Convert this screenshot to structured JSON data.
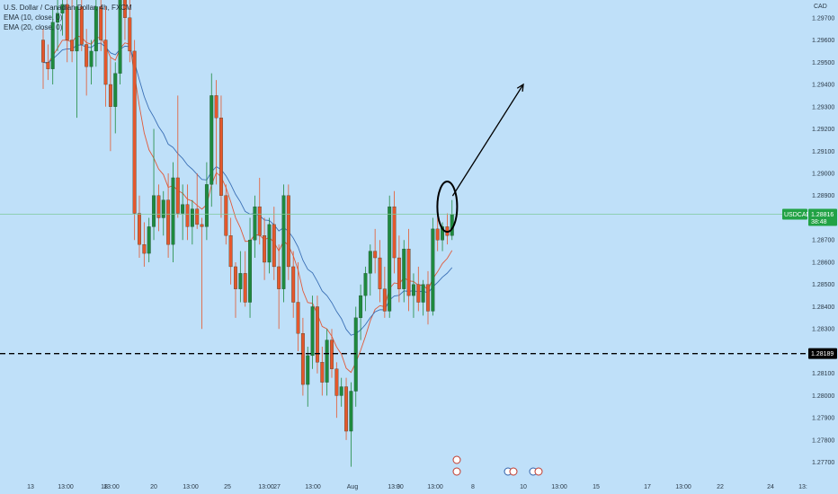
{
  "legend": {
    "title": "U.S. Dollar / Canadian Dollar, 4h, FXCM",
    "ema1": "EMA (10, close, 0)",
    "ema2": "EMA (20, close, 0)"
  },
  "chart_data": {
    "type": "candlestick",
    "symbol": "USDCAD",
    "currency_label": "CAD",
    "y_ticks": [
      "1.29700",
      "1.29600",
      "1.29500",
      "1.29400",
      "1.29300",
      "1.29200",
      "1.29100",
      "1.29000",
      "1.28900",
      "1.28700",
      "1.28600",
      "1.28500",
      "1.28400",
      "1.28300",
      "1.28100",
      "1.28000",
      "1.27900",
      "1.27800",
      "1.27700"
    ],
    "x_ticks": [
      "13",
      "13:00",
      "18",
      "13:00",
      "20",
      "13:00",
      "25",
      "13:00",
      "27",
      "13:00",
      "Aug",
      "13:00",
      "3",
      "13:00",
      "8",
      "10",
      "13:00",
      "15",
      "17",
      "13:00",
      "22",
      "24",
      "13:"
    ],
    "ylim": [
      1.2763,
      1.2978
    ],
    "last_price": {
      "label": "USDCAD",
      "value": "1.28816",
      "countdown": "38:48"
    },
    "support_level": {
      "value": "1.28189"
    },
    "colors": {
      "up": "#1e8a3e",
      "down": "#e5572c",
      "ema_fast": "#e05a3a",
      "ema_slow": "#3a6fb5",
      "background": "#bfe0f9"
    },
    "annotations": [
      "ellipse around latest candles",
      "arrow pointing up-right"
    ],
    "candles": [
      {
        "o": 1.296,
        "h": 1.2965,
        "l": 1.2938,
        "c": 1.295
      },
      {
        "o": 1.295,
        "h": 1.2958,
        "l": 1.2942,
        "c": 1.2947
      },
      {
        "o": 1.2947,
        "h": 1.2975,
        "l": 1.294,
        "c": 1.2968
      },
      {
        "o": 1.2968,
        "h": 1.298,
        "l": 1.2955,
        "c": 1.2972
      },
      {
        "o": 1.2972,
        "h": 1.2982,
        "l": 1.2962,
        "c": 1.2976
      },
      {
        "o": 1.2976,
        "h": 1.2985,
        "l": 1.295,
        "c": 1.296
      },
      {
        "o": 1.296,
        "h": 1.2978,
        "l": 1.295,
        "c": 1.2955
      },
      {
        "o": 1.2955,
        "h": 1.298,
        "l": 1.2925,
        "c": 1.2975
      },
      {
        "o": 1.2975,
        "h": 1.299,
        "l": 1.2955,
        "c": 1.2958
      },
      {
        "o": 1.2958,
        "h": 1.2965,
        "l": 1.2935,
        "c": 1.2948
      },
      {
        "o": 1.2948,
        "h": 1.296,
        "l": 1.294,
        "c": 1.2955
      },
      {
        "o": 1.2955,
        "h": 1.298,
        "l": 1.2948,
        "c": 1.2975
      },
      {
        "o": 1.2975,
        "h": 1.2985,
        "l": 1.2955,
        "c": 1.296
      },
      {
        "o": 1.296,
        "h": 1.2975,
        "l": 1.293,
        "c": 1.294
      },
      {
        "o": 1.294,
        "h": 1.2952,
        "l": 1.291,
        "c": 1.293
      },
      {
        "o": 1.293,
        "h": 1.295,
        "l": 1.2918,
        "c": 1.2945
      },
      {
        "o": 1.2945,
        "h": 1.2985,
        "l": 1.294,
        "c": 1.298
      },
      {
        "o": 1.298,
        "h": 1.299,
        "l": 1.296,
        "c": 1.297
      },
      {
        "o": 1.297,
        "h": 1.298,
        "l": 1.295,
        "c": 1.2955
      },
      {
        "o": 1.2955,
        "h": 1.296,
        "l": 1.287,
        "c": 1.2882
      },
      {
        "o": 1.2882,
        "h": 1.289,
        "l": 1.2862,
        "c": 1.2868
      },
      {
        "o": 1.2868,
        "h": 1.2878,
        "l": 1.2858,
        "c": 1.2864
      },
      {
        "o": 1.2864,
        "h": 1.288,
        "l": 1.286,
        "c": 1.2876
      },
      {
        "o": 1.2876,
        "h": 1.292,
        "l": 1.287,
        "c": 1.289
      },
      {
        "o": 1.289,
        "h": 1.2895,
        "l": 1.2874,
        "c": 1.288
      },
      {
        "o": 1.288,
        "h": 1.2892,
        "l": 1.2872,
        "c": 1.2888
      },
      {
        "o": 1.2888,
        "h": 1.29,
        "l": 1.2862,
        "c": 1.2868
      },
      {
        "o": 1.2868,
        "h": 1.2905,
        "l": 1.286,
        "c": 1.2898
      },
      {
        "o": 1.2898,
        "h": 1.2935,
        "l": 1.288,
        "c": 1.2882
      },
      {
        "o": 1.2882,
        "h": 1.2895,
        "l": 1.287,
        "c": 1.2886
      },
      {
        "o": 1.2886,
        "h": 1.2895,
        "l": 1.287,
        "c": 1.2876
      },
      {
        "o": 1.2876,
        "h": 1.2888,
        "l": 1.2868,
        "c": 1.2884
      },
      {
        "o": 1.2884,
        "h": 1.29,
        "l": 1.2875,
        "c": 1.2877
      },
      {
        "o": 1.2877,
        "h": 1.288,
        "l": 1.283,
        "c": 1.2876
      },
      {
        "o": 1.2876,
        "h": 1.2905,
        "l": 1.287,
        "c": 1.2895
      },
      {
        "o": 1.2895,
        "h": 1.2945,
        "l": 1.2885,
        "c": 1.2935
      },
      {
        "o": 1.2935,
        "h": 1.2942,
        "l": 1.2895,
        "c": 1.2925
      },
      {
        "o": 1.2925,
        "h": 1.2935,
        "l": 1.288,
        "c": 1.289
      },
      {
        "o": 1.289,
        "h": 1.2895,
        "l": 1.2868,
        "c": 1.2872
      },
      {
        "o": 1.2872,
        "h": 1.288,
        "l": 1.285,
        "c": 1.2858
      },
      {
        "o": 1.2858,
        "h": 1.286,
        "l": 1.2835,
        "c": 1.2848
      },
      {
        "o": 1.2848,
        "h": 1.2865,
        "l": 1.2842,
        "c": 1.2855
      },
      {
        "o": 1.2855,
        "h": 1.2865,
        "l": 1.284,
        "c": 1.2842
      },
      {
        "o": 1.2842,
        "h": 1.288,
        "l": 1.2835,
        "c": 1.287
      },
      {
        "o": 1.287,
        "h": 1.289,
        "l": 1.2862,
        "c": 1.2885
      },
      {
        "o": 1.2885,
        "h": 1.2898,
        "l": 1.2868,
        "c": 1.2872
      },
      {
        "o": 1.2872,
        "h": 1.288,
        "l": 1.2852,
        "c": 1.286
      },
      {
        "o": 1.286,
        "h": 1.288,
        "l": 1.2855,
        "c": 1.2877
      },
      {
        "o": 1.2877,
        "h": 1.2885,
        "l": 1.2852,
        "c": 1.2858
      },
      {
        "o": 1.2858,
        "h": 1.2868,
        "l": 1.283,
        "c": 1.2848
      },
      {
        "o": 1.2848,
        "h": 1.2895,
        "l": 1.2842,
        "c": 1.289
      },
      {
        "o": 1.289,
        "h": 1.2895,
        "l": 1.2852,
        "c": 1.2858
      },
      {
        "o": 1.2858,
        "h": 1.2865,
        "l": 1.2835,
        "c": 1.2842
      },
      {
        "o": 1.2842,
        "h": 1.286,
        "l": 1.282,
        "c": 1.2828
      },
      {
        "o": 1.2828,
        "h": 1.2835,
        "l": 1.28,
        "c": 1.2805
      },
      {
        "o": 1.2805,
        "h": 1.2822,
        "l": 1.2795,
        "c": 1.2818
      },
      {
        "o": 1.2818,
        "h": 1.2845,
        "l": 1.2812,
        "c": 1.284
      },
      {
        "o": 1.284,
        "h": 1.2845,
        "l": 1.281,
        "c": 1.2815
      },
      {
        "o": 1.2815,
        "h": 1.2822,
        "l": 1.28,
        "c": 1.2806
      },
      {
        "o": 1.2806,
        "h": 1.283,
        "l": 1.28,
        "c": 1.2825
      },
      {
        "o": 1.2825,
        "h": 1.283,
        "l": 1.2808,
        "c": 1.2812
      },
      {
        "o": 1.2812,
        "h": 1.2815,
        "l": 1.279,
        "c": 1.28
      },
      {
        "o": 1.28,
        "h": 1.2808,
        "l": 1.2795,
        "c": 1.2804
      },
      {
        "o": 1.2804,
        "h": 1.2808,
        "l": 1.278,
        "c": 1.2784
      },
      {
        "o": 1.2784,
        "h": 1.2806,
        "l": 1.2768,
        "c": 1.2802
      },
      {
        "o": 1.2802,
        "h": 1.284,
        "l": 1.2795,
        "c": 1.2835
      },
      {
        "o": 1.2835,
        "h": 1.285,
        "l": 1.2825,
        "c": 1.2845
      },
      {
        "o": 1.2845,
        "h": 1.2858,
        "l": 1.2838,
        "c": 1.2855
      },
      {
        "o": 1.2855,
        "h": 1.2868,
        "l": 1.2845,
        "c": 1.2865
      },
      {
        "o": 1.2865,
        "h": 1.2875,
        "l": 1.2855,
        "c": 1.2862
      },
      {
        "o": 1.2862,
        "h": 1.287,
        "l": 1.2842,
        "c": 1.2848
      },
      {
        "o": 1.2848,
        "h": 1.2858,
        "l": 1.2835,
        "c": 1.2838
      },
      {
        "o": 1.2838,
        "h": 1.289,
        "l": 1.2835,
        "c": 1.2885
      },
      {
        "o": 1.2885,
        "h": 1.2892,
        "l": 1.2855,
        "c": 1.2862
      },
      {
        "o": 1.2862,
        "h": 1.2872,
        "l": 1.2842,
        "c": 1.2848
      },
      {
        "o": 1.2848,
        "h": 1.287,
        "l": 1.2842,
        "c": 1.2866
      },
      {
        "o": 1.2866,
        "h": 1.2875,
        "l": 1.2838,
        "c": 1.2845
      },
      {
        "o": 1.2845,
        "h": 1.2855,
        "l": 1.2835,
        "c": 1.285
      },
      {
        "o": 1.285,
        "h": 1.2858,
        "l": 1.2838,
        "c": 1.2842
      },
      {
        "o": 1.2842,
        "h": 1.2852,
        "l": 1.2836,
        "c": 1.285
      },
      {
        "o": 1.285,
        "h": 1.2856,
        "l": 1.2832,
        "c": 1.2838
      },
      {
        "o": 1.2838,
        "h": 1.288,
        "l": 1.2836,
        "c": 1.2875
      },
      {
        "o": 1.2875,
        "h": 1.2882,
        "l": 1.2865,
        "c": 1.287
      },
      {
        "o": 1.287,
        "h": 1.2878,
        "l": 1.2865,
        "c": 1.2876
      },
      {
        "o": 1.2876,
        "h": 1.2882,
        "l": 1.2868,
        "c": 1.2872
      },
      {
        "o": 1.2872,
        "h": 1.2888,
        "l": 1.287,
        "c": 1.28816
      }
    ]
  }
}
